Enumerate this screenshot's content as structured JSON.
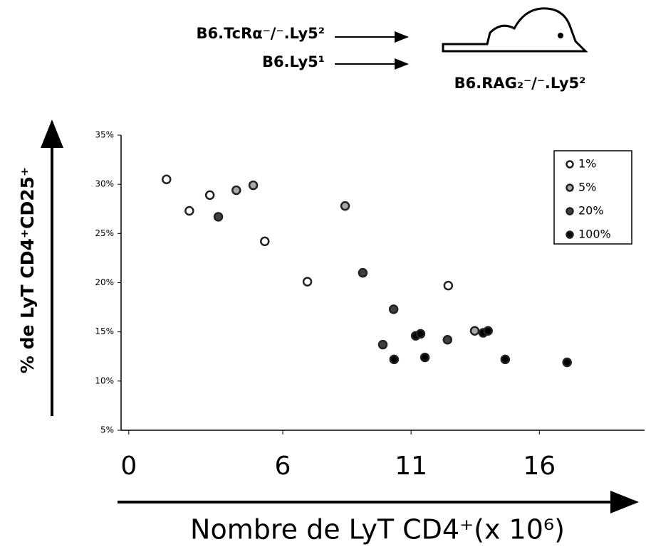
{
  "diagram": {
    "donors": [
      "B6.TcRα⁻/⁻.Ly5²",
      "B6.Ly5¹"
    ],
    "recipient": "B6.RAG₂⁻/⁻.Ly5²"
  },
  "chart_data": {
    "type": "scatter",
    "x_label": "Nombre de LyT CD4⁺(x 10⁶)",
    "y_label": "% de LyT CD4⁺CD25⁺",
    "xlim": [
      -0.3,
      20.1
    ],
    "ylim": [
      5,
      35
    ],
    "xticks": [
      0,
      6,
      11,
      16
    ],
    "yticks": [
      {
        "value": 5,
        "label": "5%"
      },
      {
        "value": 10,
        "label": "10%"
      },
      {
        "value": 15,
        "label": "15%"
      },
      {
        "value": 20,
        "label": "20%"
      },
      {
        "value": 25,
        "label": "25%"
      },
      {
        "value": 30,
        "label": "30%"
      },
      {
        "value": 35,
        "label": "35%"
      }
    ],
    "legend": "upper right",
    "series": [
      {
        "name": "1%",
        "color": "#ffffff",
        "x": [
          1.47,
          2.36,
          3.16,
          5.3,
          6.96,
          12.45
        ],
        "values": [
          30.5,
          27.3,
          28.9,
          24.2,
          20.1,
          19.7
        ]
      },
      {
        "name": "5%",
        "color": "#a8a8a8",
        "x": [
          4.19,
          4.85,
          8.43,
          13.48
        ],
        "values": [
          29.4,
          29.9,
          27.8,
          15.1
        ]
      },
      {
        "name": "20%",
        "color": "#404040",
        "x": [
          3.49,
          9.12,
          10.32,
          9.9,
          12.42
        ],
        "values": [
          26.7,
          21.0,
          17.3,
          13.7,
          14.2
        ]
      },
      {
        "name": "100%",
        "color": "#000000",
        "x": [
          11.18,
          11.37,
          10.34,
          11.54,
          13.81,
          14.0,
          14.67,
          17.08
        ],
        "values": [
          14.6,
          14.8,
          12.2,
          12.4,
          14.9,
          15.1,
          12.2,
          11.9
        ]
      }
    ]
  }
}
